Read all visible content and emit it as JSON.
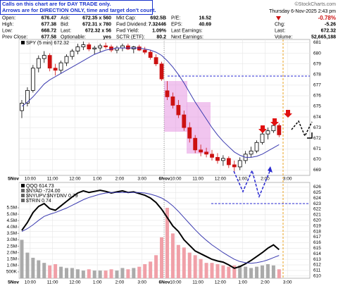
{
  "header": {
    "note": [
      "Calls on this chart are for DAY TRADE only.",
      "Arrows are for DIRECTION ONLY, time and target don't count."
    ],
    "stats": [
      [
        [
          "Open:",
          "676.47"
        ],
        [
          "High:",
          "677.38"
        ],
        [
          "Low:",
          "668.72"
        ],
        [
          "Prev Close:",
          "677.58"
        ]
      ],
      [
        [
          "Ask:",
          "672.35 x 560"
        ],
        [
          "Bid:",
          "672.31 x 780"
        ],
        [
          "Last:",
          "672.32 x 56"
        ],
        [
          "Optionable:",
          "yes"
        ]
      ],
      [
        [
          "Mkt Cap:",
          "692.5B"
        ],
        [
          "Fwd Dividend:",
          "7.32446"
        ],
        [
          "Fwd Yield:",
          "1.09%"
        ],
        [
          "SCTR (ETF):",
          "80.2"
        ]
      ],
      [
        [
          "P/E:",
          "16.52"
        ],
        [
          "EPS:",
          "40.69"
        ],
        [
          "Last Earnings:"
        ],
        [
          "Next Earnings:"
        ]
      ]
    ],
    "copyright": "©StockCharts.com",
    "date": "Thursday 6-Nov-2025 2:43 pm",
    "pct_change": "-0.78%",
    "right": [
      [
        "Chg:",
        "-5.26"
      ],
      [
        "Last:",
        "672.32"
      ],
      [
        "Volume:",
        "52,665,188"
      ]
    ]
  },
  "chart_data": [
    {
      "type": "candlestick",
      "title": "SPY (5 min) 672.32",
      "categories": [
        "5Nov",
        null,
        "10:00",
        null,
        null,
        null,
        "11:00",
        null,
        null,
        null,
        "12:00",
        null,
        null,
        null,
        "1:00",
        null,
        null,
        null,
        "2:00",
        null,
        null,
        null,
        "3:00",
        null,
        null,
        null,
        "6Nov",
        null,
        "10:00",
        null,
        null,
        null,
        "11:00",
        null,
        null,
        null,
        "12:00",
        null,
        null,
        null,
        "1:00",
        null,
        null,
        null,
        "2:00",
        null,
        null,
        null,
        "3:00",
        null,
        null,
        null
      ],
      "open": [
        674.6,
        675.3,
        676.5,
        678.6,
        679.5,
        679.8,
        678.6,
        678.4,
        679.1,
        679.7,
        680.2,
        680.6,
        680.8,
        680.4,
        680.5,
        680.7,
        680.6,
        680.3,
        680.5,
        680.7,
        680.4,
        680.6,
        680.3,
        680.1,
        679.6,
        679.0,
        676.47,
        675.9,
        675.1,
        674.2,
        673.0,
        672.0,
        670.9,
        670.7,
        670.5,
        670.2,
        669.9,
        670.1,
        669.5,
        669.3,
        669.9,
        670.5,
        670.8,
        671.6,
        672.4,
        672.7,
        673.2,
        null,
        null,
        null,
        null,
        null
      ],
      "high": [
        675.6,
        676.8,
        678.9,
        679.8,
        680.2,
        680.0,
        679.0,
        679.3,
        679.9,
        680.4,
        680.9,
        681.1,
        681.0,
        680.7,
        680.9,
        681.0,
        680.8,
        680.7,
        680.9,
        680.9,
        680.7,
        680.8,
        680.6,
        680.3,
        679.9,
        679.2,
        677.38,
        676.3,
        675.6,
        674.6,
        673.5,
        672.3,
        671.4,
        671.1,
        670.9,
        670.6,
        670.4,
        670.3,
        669.9,
        670.2,
        670.8,
        671.2,
        671.8,
        672.6,
        673.0,
        673.6,
        673.4,
        null,
        null,
        null,
        null,
        null
      ],
      "low": [
        673.9,
        675.0,
        676.3,
        678.2,
        679.1,
        678.3,
        677.9,
        678.1,
        678.8,
        679.4,
        679.9,
        680.3,
        680.2,
        679.9,
        680.1,
        680.4,
        680.1,
        680.0,
        680.2,
        680.3,
        680.0,
        680.2,
        679.9,
        679.4,
        678.8,
        677.4,
        675.6,
        674.8,
        673.9,
        672.7,
        671.6,
        670.6,
        670.3,
        670.2,
        669.9,
        669.6,
        669.4,
        669.2,
        668.72,
        669.0,
        669.6,
        670.2,
        670.6,
        671.4,
        671.9,
        672.5,
        672.1,
        null,
        null,
        null,
        null,
        null
      ],
      "close": [
        675.3,
        676.5,
        678.6,
        679.5,
        679.8,
        678.6,
        678.4,
        679.1,
        679.7,
        680.2,
        680.6,
        680.8,
        680.4,
        680.5,
        680.7,
        680.6,
        680.3,
        680.5,
        680.7,
        680.4,
        680.6,
        680.3,
        680.1,
        679.6,
        679.0,
        677.58,
        675.9,
        675.1,
        674.2,
        673.0,
        672.0,
        670.9,
        670.7,
        670.5,
        670.2,
        669.9,
        670.1,
        669.5,
        669.3,
        669.9,
        670.5,
        670.8,
        671.6,
        672.4,
        672.7,
        673.2,
        672.32,
        null,
        null,
        null,
        null,
        null
      ],
      "ma": {
        "color": "#3b3bb0",
        "values": [
          675.0,
          675.4,
          675.9,
          676.5,
          677.1,
          677.5,
          677.8,
          678.1,
          678.4,
          678.7,
          679.0,
          679.3,
          679.6,
          679.9,
          680.1,
          680.3,
          680.4,
          680.5,
          680.5,
          680.5,
          680.5,
          680.5,
          680.4,
          680.3,
          680.1,
          679.8,
          679.3,
          678.7,
          678.0,
          677.2,
          676.3,
          675.4,
          674.6,
          673.8,
          673.0,
          672.3,
          671.7,
          671.2,
          670.7,
          670.4,
          670.2,
          670.2,
          670.3,
          670.5,
          670.8,
          671.1,
          671.4,
          null,
          null,
          null,
          null,
          null
        ]
      },
      "up_color": "#000000",
      "down_color": "#cc1111",
      "ylim": [
        668.5,
        681.3
      ],
      "yticks": [
        669,
        670,
        671,
        672,
        673,
        674,
        675,
        676,
        677,
        678,
        679,
        680,
        681
      ]
    },
    {
      "type": "line",
      "legend": [
        "$NYAD -724.00",
        "$NYUPV:$NYDNV 0.79",
        "$TRIN 0.74"
      ],
      "categories": [
        "5Nov",
        null,
        "10:00",
        null,
        null,
        null,
        "11:00",
        null,
        null,
        null,
        "12:00",
        null,
        null,
        null,
        "1:00",
        null,
        null,
        null,
        "2:00",
        null,
        null,
        null,
        "3:00",
        null,
        null,
        null,
        "6Nov",
        null,
        "10:00",
        null,
        null,
        null,
        "11:00",
        null,
        null,
        null,
        "12:00",
        null,
        null,
        null,
        "1:00",
        null,
        null,
        null,
        "2:00",
        null,
        null,
        null,
        "3:00",
        null,
        null,
        null
      ],
      "series": [
        {
          "name": "QQQ 614.73",
          "color": "#000000",
          "values": [
            618.2,
            619.6,
            621.4,
            622.5,
            623.0,
            622.1,
            621.8,
            622.6,
            623.4,
            624.2,
            624.9,
            625.3,
            625.0,
            625.2,
            625.4,
            625.2,
            624.9,
            625.1,
            625.3,
            625.0,
            625.1,
            624.8,
            624.5,
            624.0,
            623.2,
            622.0,
            620.5,
            619.0,
            618.0,
            616.5,
            615.5,
            614.5,
            614.0,
            613.5,
            613.0,
            612.7,
            612.5,
            612.0,
            611.4,
            611.7,
            612.2,
            612.8,
            613.5,
            614.2,
            615.0,
            615.6,
            614.73,
            null,
            null,
            null,
            null,
            null
          ]
        },
        {
          "color": "#3b3bb0",
          "values": [
            618.0,
            618.5,
            619.2,
            620.0,
            620.7,
            621.1,
            621.4,
            621.8,
            622.2,
            622.7,
            623.2,
            623.7,
            624.1,
            624.4,
            624.7,
            624.9,
            625.0,
            625.0,
            625.0,
            625.0,
            625.0,
            625.0,
            624.9,
            624.7,
            624.4,
            624.0,
            623.4,
            622.6,
            621.6,
            620.5,
            619.4,
            618.3,
            617.3,
            616.4,
            615.6,
            614.9,
            614.2,
            613.6,
            613.0,
            612.6,
            612.4,
            612.3,
            612.4,
            612.6,
            612.9,
            613.3,
            613.7,
            null,
            null,
            null,
            null,
            null
          ]
        }
      ],
      "volume": {
        "up_color": "#aaaaaa",
        "down_color": "#f0a0a8",
        "values": [
          3000000,
          2000000,
          1600000,
          1400000,
          1200000,
          1000000,
          1100000,
          900000,
          800000,
          800000,
          700000,
          600000,
          700000,
          600000,
          600000,
          600000,
          700000,
          600000,
          800000,
          700000,
          800000,
          900000,
          1100000,
          1300000,
          1800000,
          3200000,
          5500000,
          3500000,
          2600000,
          2400000,
          2000000,
          1800000,
          1500000,
          1200000,
          1200000,
          1100000,
          1000000,
          900000,
          1000000,
          1000000,
          900000,
          800000,
          900000,
          1000000,
          1100000,
          1000000,
          700000,
          null,
          null,
          null,
          null,
          null
        ]
      },
      "ylim": [
        609.6,
        626.8
      ],
      "yticks": [
        610,
        611,
        612,
        613,
        614,
        615,
        616,
        617,
        618,
        619,
        620,
        621,
        622,
        623,
        624,
        625,
        626
      ],
      "vlim": [
        0,
        7480000
      ],
      "vticks": [
        {
          "value": 500000,
          "label": "500K"
        },
        {
          "value": 1000000,
          "label": "1.0M"
        },
        {
          "value": 1500000,
          "label": "1.5M"
        },
        {
          "value": 2000000,
          "label": "2.0M"
        },
        {
          "value": 2500000,
          "label": "2.5M"
        },
        {
          "value": 3000000,
          "label": "3.0M"
        },
        {
          "value": 3500000,
          "label": "3.5M"
        },
        {
          "value": 4000000,
          "label": "4.0M"
        },
        {
          "value": 4500000,
          "label": "4.5M"
        },
        {
          "value": 5000000,
          "label": "5.0M"
        },
        {
          "value": 5500000,
          "label": "5.5M"
        }
      ]
    }
  ]
}
